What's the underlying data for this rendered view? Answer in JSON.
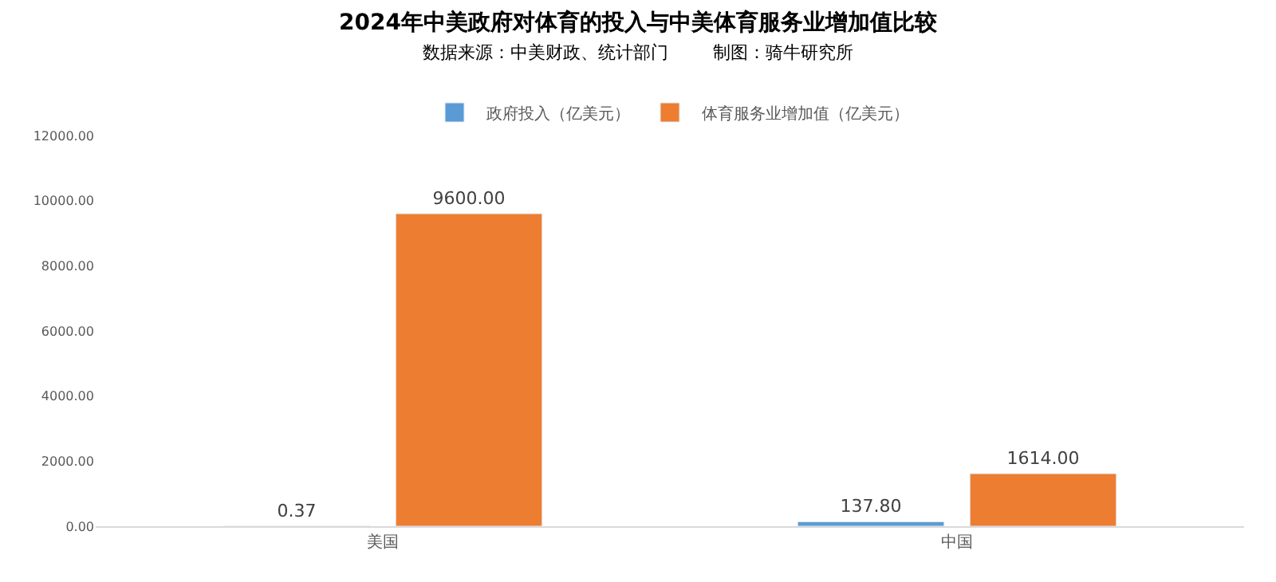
{
  "chart_data": {
    "type": "bar",
    "title": "2024年中美政府对体育的投入与中美体育服务业增加值比较",
    "subtitle": "数据来源：中美财政、统计部门        制图：骑牛研究所",
    "categories": [
      "美国",
      "中国"
    ],
    "series": [
      {
        "name": "政府投入（亿美元）",
        "color": "#5b9bd5",
        "values": [
          0.37,
          137.8
        ],
        "value_labels": [
          "0.37",
          "137.80"
        ]
      },
      {
        "name": "体育服务业增加值（亿美元）",
        "color": "#ed7d31",
        "values": [
          9600,
          1614
        ],
        "value_labels": [
          "9600.00",
          "1614.00"
        ]
      }
    ],
    "ylim": [
      0,
      12000
    ],
    "yticks": [
      {
        "value": 0,
        "label": "0.00"
      },
      {
        "value": 2000,
        "label": "2000.00"
      },
      {
        "value": 4000,
        "label": "4000.00"
      },
      {
        "value": 6000,
        "label": "6000.00"
      },
      {
        "value": 8000,
        "label": "8000.00"
      },
      {
        "value": 10000,
        "label": "10000.00"
      },
      {
        "value": 12000,
        "label": "12000.00"
      }
    ],
    "grid": false,
    "legend": "top"
  }
}
